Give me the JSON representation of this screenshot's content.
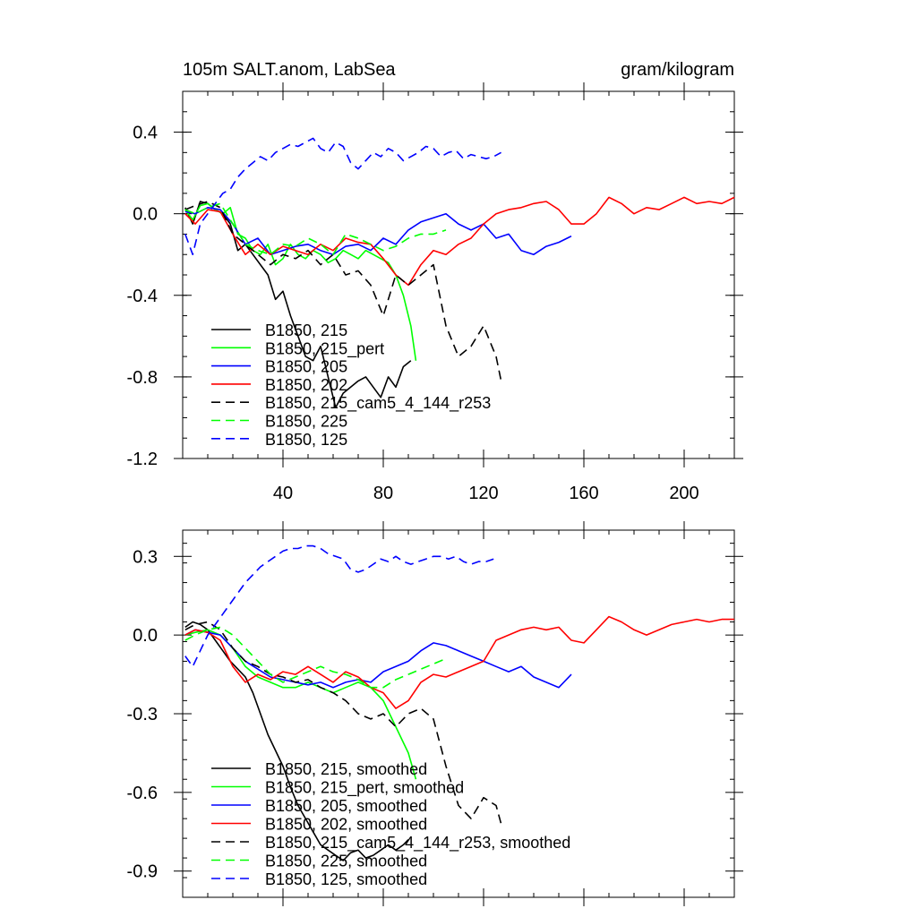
{
  "chart_data": [
    {
      "type": "line",
      "title_left": "105m SALT.anom, LabSea",
      "title_right": "gram/kilogram",
      "xlim": [
        0,
        220
      ],
      "ylim": [
        -1.2,
        0.6
      ],
      "x_ticks": [
        40,
        80,
        120,
        160,
        200
      ],
      "x_tick_labels": [
        "40",
        "80",
        "120",
        "160",
        "200"
      ],
      "y_ticks": [
        -1.2,
        -0.8,
        -0.4,
        0.0,
        0.4
      ],
      "y_tick_labels": [
        "-1.2",
        "-0.8",
        "-0.4",
        "0.0",
        "0.4"
      ],
      "legend_position": "bottom-left",
      "series": [
        {
          "name": "B1850, 215",
          "color": "#000000",
          "dash": "solid",
          "x": [
            1,
            4,
            7,
            10,
            13,
            16,
            19,
            22,
            25,
            28,
            31,
            34,
            37,
            40,
            43,
            46,
            49,
            52,
            55,
            58,
            61,
            64,
            67,
            70,
            73,
            76,
            79,
            82,
            85,
            88,
            91
          ],
          "y": [
            0.03,
            -0.05,
            0.06,
            0.05,
            0.02,
            0.0,
            -0.05,
            -0.18,
            -0.15,
            -0.2,
            -0.25,
            -0.3,
            -0.42,
            -0.38,
            -0.5,
            -0.6,
            -0.7,
            -0.72,
            -0.65,
            -0.8,
            -0.95,
            -0.88,
            -0.85,
            -0.82,
            -0.8,
            -0.85,
            -0.9,
            -0.8,
            -0.85,
            -0.75,
            -0.72
          ]
        },
        {
          "name": "B1850, 215_pert",
          "color": "#00ff00",
          "dash": "solid",
          "x": [
            1,
            4,
            7,
            10,
            13,
            16,
            19,
            22,
            25,
            28,
            31,
            34,
            37,
            40,
            43,
            46,
            49,
            52,
            55,
            58,
            61,
            64,
            67,
            70,
            73,
            76,
            79,
            82,
            85,
            88,
            91,
            93
          ],
          "y": [
            0.02,
            -0.03,
            0.04,
            0.05,
            0.02,
            0.0,
            0.03,
            -0.1,
            -0.12,
            -0.18,
            -0.2,
            -0.15,
            -0.25,
            -0.22,
            -0.15,
            -0.2,
            -0.22,
            -0.18,
            -0.2,
            -0.24,
            -0.22,
            -0.18,
            -0.2,
            -0.22,
            -0.18,
            -0.2,
            -0.22,
            -0.24,
            -0.3,
            -0.4,
            -0.55,
            -0.72
          ]
        },
        {
          "name": "B1850, 205",
          "color": "#0000ff",
          "dash": "solid",
          "x": [
            1,
            5,
            10,
            15,
            20,
            25,
            30,
            35,
            40,
            45,
            50,
            55,
            60,
            65,
            70,
            75,
            80,
            85,
            90,
            95,
            100,
            105,
            110,
            115,
            120,
            125,
            130,
            135,
            140,
            145,
            150,
            155
          ],
          "y": [
            0.01,
            0.0,
            0.03,
            0.02,
            -0.05,
            -0.15,
            -0.12,
            -0.2,
            -0.18,
            -0.16,
            -0.15,
            -0.18,
            -0.2,
            -0.16,
            -0.15,
            -0.18,
            -0.12,
            -0.15,
            -0.08,
            -0.04,
            -0.02,
            0.0,
            -0.05,
            -0.08,
            -0.05,
            -0.12,
            -0.1,
            -0.18,
            -0.2,
            -0.16,
            -0.14,
            -0.11
          ]
        },
        {
          "name": "B1850, 202",
          "color": "#ff0000",
          "dash": "solid",
          "x": [
            1,
            5,
            10,
            15,
            20,
            25,
            30,
            35,
            40,
            45,
            50,
            55,
            60,
            65,
            70,
            75,
            80,
            85,
            90,
            95,
            100,
            105,
            110,
            115,
            120,
            125,
            130,
            135,
            140,
            145,
            150,
            155,
            160,
            165,
            170,
            175,
            180,
            185,
            190,
            195,
            200,
            205,
            210,
            215,
            220
          ],
          "y": [
            0.0,
            -0.05,
            0.02,
            0.01,
            -0.1,
            -0.2,
            -0.15,
            -0.2,
            -0.16,
            -0.18,
            -0.2,
            -0.15,
            -0.18,
            -0.12,
            -0.14,
            -0.15,
            -0.22,
            -0.3,
            -0.35,
            -0.25,
            -0.18,
            -0.2,
            -0.15,
            -0.12,
            -0.05,
            0.0,
            0.02,
            0.03,
            0.05,
            0.06,
            0.02,
            -0.05,
            -0.05,
            0.0,
            0.08,
            0.05,
            0.0,
            0.03,
            0.02,
            0.05,
            0.08,
            0.05,
            0.06,
            0.05,
            0.08
          ]
        },
        {
          "name": "B1850, 215_cam5_4_144_r253",
          "color": "#000000",
          "dash": "dashed",
          "x": [
            1,
            5,
            10,
            15,
            20,
            25,
            30,
            35,
            40,
            45,
            50,
            55,
            60,
            65,
            70,
            75,
            80,
            85,
            90,
            95,
            100,
            105,
            110,
            115,
            120,
            125,
            127
          ],
          "y": [
            0.02,
            0.04,
            0.06,
            0.03,
            -0.1,
            -0.15,
            -0.2,
            -0.25,
            -0.2,
            -0.22,
            -0.18,
            -0.25,
            -0.2,
            -0.3,
            -0.28,
            -0.35,
            -0.5,
            -0.3,
            -0.35,
            -0.3,
            -0.25,
            -0.55,
            -0.7,
            -0.65,
            -0.55,
            -0.7,
            -0.82
          ]
        },
        {
          "name": "B1850, 225",
          "color": "#00ff00",
          "dash": "dashed",
          "x": [
            1,
            5,
            10,
            15,
            20,
            25,
            30,
            35,
            40,
            45,
            50,
            55,
            60,
            65,
            70,
            75,
            80,
            85,
            90,
            95,
            100,
            105
          ],
          "y": [
            0.02,
            0.0,
            0.03,
            0.05,
            -0.05,
            -0.15,
            -0.18,
            -0.2,
            -0.15,
            -0.16,
            -0.12,
            -0.15,
            -0.2,
            -0.1,
            -0.12,
            -0.15,
            -0.18,
            -0.16,
            -0.12,
            -0.1,
            -0.1,
            -0.08
          ]
        },
        {
          "name": "B1850, 125",
          "color": "#0000ff",
          "dash": "dashed",
          "x": [
            1,
            4,
            7,
            10,
            13,
            16,
            19,
            22,
            25,
            28,
            31,
            34,
            37,
            40,
            43,
            46,
            49,
            52,
            55,
            58,
            61,
            64,
            67,
            70,
            73,
            76,
            79,
            82,
            85,
            88,
            91,
            94,
            97,
            100,
            103,
            106,
            109,
            112,
            115,
            118,
            121,
            124,
            127
          ],
          "y": [
            -0.1,
            -0.2,
            -0.05,
            0.0,
            0.05,
            0.1,
            0.12,
            0.18,
            0.22,
            0.25,
            0.28,
            0.26,
            0.3,
            0.32,
            0.34,
            0.33,
            0.35,
            0.37,
            0.32,
            0.3,
            0.35,
            0.33,
            0.25,
            0.22,
            0.26,
            0.3,
            0.28,
            0.32,
            0.3,
            0.26,
            0.28,
            0.3,
            0.33,
            0.32,
            0.28,
            0.3,
            0.31,
            0.27,
            0.29,
            0.28,
            0.27,
            0.28,
            0.3
          ]
        }
      ]
    },
    {
      "type": "line",
      "xlim": [
        0,
        220
      ],
      "ylim": [
        -1.0,
        0.4
      ],
      "x_ticks": [
        40,
        80,
        120,
        160,
        200
      ],
      "y_ticks": [
        -0.9,
        -0.6,
        -0.3,
        0.0,
        0.3
      ],
      "y_tick_labels": [
        "-0.9",
        "-0.6",
        "-0.3",
        "0.0",
        "0.3"
      ],
      "legend_position": "bottom-left",
      "series": [
        {
          "name": "B1850, 215, smoothed",
          "color": "#000000",
          "dash": "solid",
          "x": [
            1,
            4,
            7,
            10,
            13,
            16,
            19,
            22,
            25,
            28,
            31,
            34,
            37,
            40,
            43,
            46,
            49,
            52,
            55,
            58,
            61,
            64,
            67,
            70,
            73,
            76,
            79,
            82,
            85,
            88,
            90
          ],
          "y": [
            0.03,
            0.05,
            0.04,
            0.02,
            -0.02,
            -0.06,
            -0.1,
            -0.13,
            -0.16,
            -0.22,
            -0.3,
            -0.38,
            -0.44,
            -0.5,
            -0.58,
            -0.65,
            -0.7,
            -0.75,
            -0.8,
            -0.82,
            -0.84,
            -0.86,
            -0.83,
            -0.82,
            -0.85,
            -0.84,
            -0.82,
            -0.8,
            -0.82,
            -0.8,
            -0.78
          ]
        },
        {
          "name": "B1850, 215_pert, smoothed",
          "color": "#00ff00",
          "dash": "solid",
          "x": [
            1,
            5,
            10,
            15,
            20,
            25,
            30,
            35,
            40,
            45,
            50,
            55,
            60,
            65,
            70,
            75,
            80,
            85,
            90,
            93
          ],
          "y": [
            0.0,
            0.01,
            0.02,
            0.0,
            -0.05,
            -0.12,
            -0.16,
            -0.18,
            -0.2,
            -0.2,
            -0.18,
            -0.2,
            -0.22,
            -0.2,
            -0.18,
            -0.2,
            -0.25,
            -0.35,
            -0.45,
            -0.55
          ]
        },
        {
          "name": "B1850, 205, smoothed",
          "color": "#0000ff",
          "dash": "solid",
          "x": [
            1,
            5,
            10,
            15,
            20,
            25,
            30,
            35,
            40,
            45,
            50,
            55,
            60,
            65,
            70,
            75,
            80,
            85,
            90,
            95,
            100,
            105,
            110,
            115,
            120,
            125,
            130,
            135,
            140,
            145,
            150,
            155
          ],
          "y": [
            0.0,
            0.02,
            0.01,
            0.0,
            -0.05,
            -0.1,
            -0.13,
            -0.16,
            -0.17,
            -0.18,
            -0.19,
            -0.18,
            -0.2,
            -0.18,
            -0.17,
            -0.18,
            -0.14,
            -0.12,
            -0.1,
            -0.06,
            -0.03,
            -0.04,
            -0.06,
            -0.08,
            -0.1,
            -0.12,
            -0.14,
            -0.12,
            -0.16,
            -0.18,
            -0.2,
            -0.15
          ]
        },
        {
          "name": "B1850, 202, smoothed",
          "color": "#ff0000",
          "dash": "solid",
          "x": [
            1,
            5,
            10,
            15,
            20,
            25,
            30,
            35,
            40,
            45,
            50,
            55,
            60,
            65,
            70,
            75,
            80,
            85,
            90,
            95,
            100,
            105,
            110,
            115,
            120,
            125,
            130,
            135,
            140,
            145,
            150,
            155,
            160,
            165,
            170,
            175,
            180,
            185,
            190,
            195,
            200,
            205,
            210,
            215,
            220
          ],
          "y": [
            0.0,
            0.02,
            0.01,
            -0.02,
            -0.12,
            -0.18,
            -0.15,
            -0.17,
            -0.14,
            -0.15,
            -0.12,
            -0.15,
            -0.18,
            -0.14,
            -0.16,
            -0.2,
            -0.22,
            -0.28,
            -0.25,
            -0.18,
            -0.15,
            -0.16,
            -0.14,
            -0.12,
            -0.1,
            -0.02,
            0.0,
            0.02,
            0.03,
            0.02,
            0.03,
            -0.02,
            -0.03,
            0.02,
            0.07,
            0.05,
            0.02,
            0.0,
            0.02,
            0.04,
            0.05,
            0.06,
            0.05,
            0.06,
            0.06
          ]
        },
        {
          "name": "B1850, 215_cam5_4_144_r253, smoothed",
          "color": "#000000",
          "dash": "dashed",
          "x": [
            1,
            5,
            10,
            15,
            20,
            25,
            30,
            35,
            40,
            45,
            50,
            55,
            60,
            65,
            70,
            75,
            80,
            85,
            90,
            95,
            100,
            105,
            110,
            115,
            120,
            125,
            127
          ],
          "y": [
            0.02,
            0.04,
            0.05,
            0.02,
            -0.05,
            -0.1,
            -0.12,
            -0.15,
            -0.16,
            -0.18,
            -0.17,
            -0.2,
            -0.22,
            -0.25,
            -0.3,
            -0.32,
            -0.3,
            -0.35,
            -0.3,
            -0.28,
            -0.32,
            -0.5,
            -0.65,
            -0.7,
            -0.62,
            -0.65,
            -0.72
          ]
        },
        {
          "name": "B1850, 225, smoothed",
          "color": "#00ff00",
          "dash": "dashed",
          "x": [
            1,
            5,
            10,
            15,
            20,
            25,
            30,
            35,
            40,
            45,
            50,
            55,
            60,
            65,
            70,
            75,
            80,
            85,
            90,
            95,
            100,
            105
          ],
          "y": [
            -0.02,
            0.0,
            0.02,
            0.03,
            0.0,
            -0.05,
            -0.1,
            -0.15,
            -0.18,
            -0.16,
            -0.14,
            -0.12,
            -0.14,
            -0.15,
            -0.17,
            -0.2,
            -0.2,
            -0.17,
            -0.15,
            -0.13,
            -0.11,
            -0.09
          ]
        },
        {
          "name": "B1850, 125, smoothed",
          "color": "#0000ff",
          "dash": "dashed",
          "x": [
            1,
            4,
            7,
            10,
            13,
            16,
            19,
            22,
            25,
            28,
            31,
            34,
            37,
            40,
            43,
            46,
            49,
            52,
            55,
            58,
            61,
            64,
            67,
            70,
            73,
            76,
            79,
            82,
            85,
            88,
            91,
            94,
            97,
            100,
            103,
            106,
            109,
            112,
            115,
            118,
            121,
            124
          ],
          "y": [
            -0.08,
            -0.12,
            -0.06,
            0.0,
            0.04,
            0.08,
            0.12,
            0.16,
            0.2,
            0.23,
            0.26,
            0.28,
            0.3,
            0.32,
            0.33,
            0.33,
            0.34,
            0.34,
            0.33,
            0.31,
            0.3,
            0.29,
            0.25,
            0.24,
            0.25,
            0.27,
            0.29,
            0.28,
            0.3,
            0.28,
            0.27,
            0.28,
            0.29,
            0.3,
            0.3,
            0.29,
            0.3,
            0.28,
            0.27,
            0.28,
            0.28,
            0.29
          ]
        }
      ]
    }
  ]
}
